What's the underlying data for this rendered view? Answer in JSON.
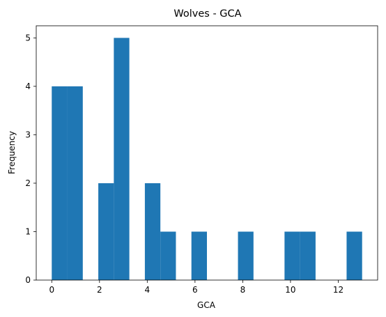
{
  "chart_data": {
    "type": "bar",
    "title": "Wolves - GCA",
    "xlabel": "GCA",
    "ylabel": "Frequency",
    "xlim": [
      -0.65,
      13.65
    ],
    "ylim": [
      0,
      5.25
    ],
    "xticks": [
      0,
      2,
      4,
      6,
      8,
      10,
      12
    ],
    "yticks": [
      0,
      1,
      2,
      3,
      4,
      5
    ],
    "bar_color": "#1f77b4",
    "bins": [
      {
        "x0": 0.0,
        "x1": 0.65,
        "count": 4
      },
      {
        "x0": 0.65,
        "x1": 1.3,
        "count": 4
      },
      {
        "x0": 1.95,
        "x1": 2.6,
        "count": 2
      },
      {
        "x0": 2.6,
        "x1": 3.25,
        "count": 5
      },
      {
        "x0": 3.9,
        "x1": 4.55,
        "count": 2
      },
      {
        "x0": 4.55,
        "x1": 5.2,
        "count": 1
      },
      {
        "x0": 5.85,
        "x1": 6.5,
        "count": 1
      },
      {
        "x0": 7.8,
        "x1": 8.45,
        "count": 1
      },
      {
        "x0": 9.75,
        "x1": 10.4,
        "count": 1
      },
      {
        "x0": 10.4,
        "x1": 11.05,
        "count": 1
      },
      {
        "x0": 12.35,
        "x1": 13.0,
        "count": 1
      }
    ]
  }
}
